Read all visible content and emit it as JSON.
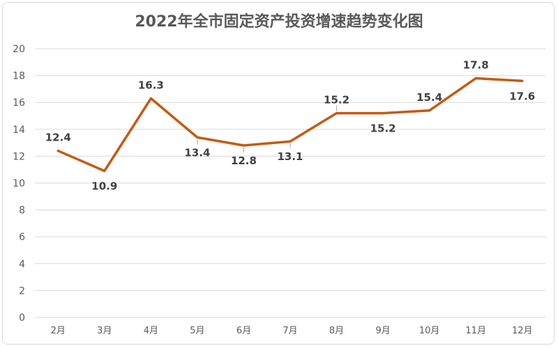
{
  "chart_data": {
    "type": "line",
    "title": "2022年全市固定资产投资增速趋势变化图",
    "xlabel": "",
    "ylabel": "",
    "categories": [
      "2月",
      "3月",
      "4月",
      "5月",
      "6月",
      "7月",
      "8月",
      "9月",
      "10月",
      "11月",
      "12月"
    ],
    "series": [
      {
        "values": [
          12.4,
          10.9,
          16.3,
          13.4,
          12.8,
          13.1,
          15.2,
          15.2,
          15.4,
          17.8,
          17.6
        ],
        "labels": [
          "12.4",
          "10.9",
          "16.3",
          "13.4",
          "12.8",
          "13.1",
          "15.2",
          "15.2",
          "15.4",
          "17.8",
          "17.6"
        ],
        "label_positions": [
          "above",
          "below",
          "above",
          "below",
          "below",
          "below",
          "above",
          "below",
          "above",
          "above",
          "below"
        ],
        "leader_lines": [
          false,
          false,
          false,
          true,
          true,
          true,
          true,
          false,
          false,
          false,
          false
        ]
      }
    ],
    "ylim": [
      0,
      20
    ],
    "yticks": [
      0,
      2,
      4,
      6,
      8,
      10,
      12,
      14,
      16,
      18,
      20
    ],
    "grid": true,
    "legend": "none",
    "colors": {
      "line": "#C55A11",
      "grid": "#D9D9D9",
      "text": "#595959",
      "label": "#404040"
    }
  }
}
